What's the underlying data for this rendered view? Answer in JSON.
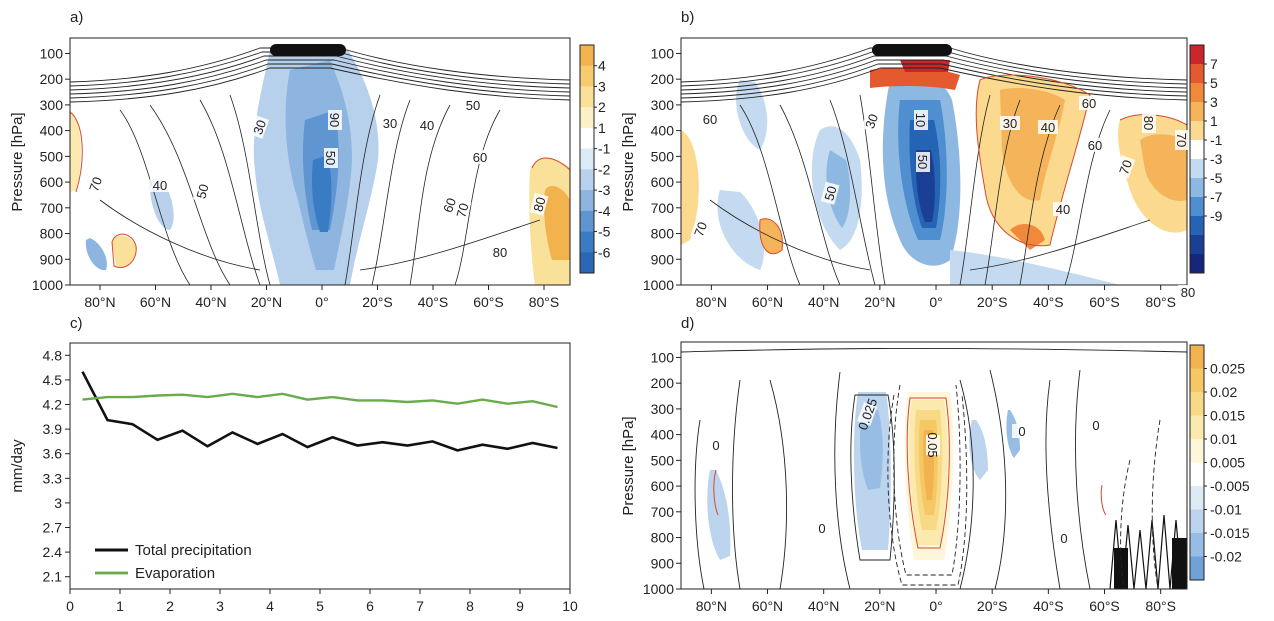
{
  "colors": {
    "frame": "#222222",
    "contour": "#222222",
    "red_contour": "#d8482f",
    "precip_line": "#111111",
    "evap_line": "#6aab4c"
  },
  "panels": [
    {
      "id": "a",
      "label": "a)",
      "ylabel": "Pressure [hPa]",
      "yticks": [
        "100",
        "200",
        "300",
        "400",
        "500",
        "600",
        "700",
        "800",
        "900",
        "1000"
      ],
      "xticks": [
        "80°N",
        "60°N",
        "40°N",
        "20°N",
        "0°",
        "20°S",
        "40°S",
        "60°S",
        "80°S"
      ],
      "colorbar": {
        "labels": [
          "4",
          "3",
          "2",
          "1",
          "-1",
          "-2",
          "-3",
          "-4",
          "-5",
          "-6"
        ],
        "colors": [
          "#f2b24e",
          "#f6cc6e",
          "#f9e19a",
          "#fcf1c6",
          "#ffffff",
          "#dce9f6",
          "#b7d1ec",
          "#8db5df",
          "#5f96d1",
          "#3a7cc4",
          "#2a68b5"
        ]
      },
      "contour_labels": [
        "30",
        "90",
        "50",
        "30",
        "40",
        "50",
        "60",
        "70",
        "50",
        "40",
        "60",
        "80",
        "70",
        "80"
      ]
    },
    {
      "id": "b",
      "label": "b)",
      "ylabel": "Pressure [hPa]",
      "yticks": [
        "100",
        "200",
        "300",
        "400",
        "500",
        "600",
        "700",
        "800",
        "900",
        "1000"
      ],
      "xticks": [
        "80°N",
        "60°N",
        "40°N",
        "20°N",
        "0°",
        "20°S",
        "40°S",
        "60°S",
        "80°S"
      ],
      "colorbar": {
        "labels": [
          "7",
          "5",
          "3",
          "1",
          "-1",
          "-3",
          "-5",
          "-7",
          "-9"
        ],
        "colors": [
          "#c8262a",
          "#e5592f",
          "#f08a3a",
          "#f6b45a",
          "#fbd98f",
          "#ffffff",
          "#c3daf0",
          "#8db8e2",
          "#4f8fd0",
          "#2563b4",
          "#1a3f94",
          "#15257a"
        ]
      },
      "contour_labels": [
        "60",
        "70",
        "30",
        "10",
        "50",
        "30",
        "40",
        "50",
        "60",
        "70",
        "80",
        "40",
        "60",
        "70",
        "80"
      ]
    },
    {
      "id": "c",
      "label": "c)",
      "ylabel": "mm/day"
    },
    {
      "id": "d",
      "label": "d)",
      "ylabel": "Pressure [hPa]",
      "yticks": [
        "100",
        "200",
        "300",
        "400",
        "500",
        "600",
        "700",
        "800",
        "900",
        "1000"
      ],
      "xticks": [
        "80°N",
        "60°N",
        "40°N",
        "20°N",
        "0°",
        "20°S",
        "40°S",
        "60°S",
        "80°S"
      ],
      "colorbar": {
        "labels": [
          "0.025",
          "0.02",
          "0.015",
          "0.01",
          "0.005",
          "-0.005",
          "-0.01",
          "-0.015",
          "-0.02"
        ],
        "colors": [
          "#f2b24e",
          "#f6c765",
          "#f8d985",
          "#fbe9ad",
          "#fdf6d8",
          "#ffffff",
          "#dfeaf7",
          "#bcd4ee",
          "#97bde4",
          "#6fa3d8"
        ]
      },
      "contour_labels": [
        "0",
        "0.025",
        "0.05",
        "0",
        "0",
        "0",
        "0"
      ]
    }
  ],
  "chart_data": [
    {
      "panel": "a",
      "type": "heatmap",
      "title": "",
      "xlabel": "",
      "ylabel": "Pressure [hPa]",
      "x_categories": [
        "80°N",
        "60°N",
        "40°N",
        "20°N",
        "0°",
        "20°S",
        "40°S",
        "60°S",
        "80°S"
      ],
      "y_range": [
        1000,
        0
      ],
      "colorbar_levels": [
        4,
        3,
        2,
        1,
        -1,
        -2,
        -3,
        -4,
        -5,
        -6
      ]
    },
    {
      "panel": "b",
      "type": "heatmap",
      "title": "",
      "xlabel": "",
      "ylabel": "Pressure [hPa]",
      "x_categories": [
        "80°N",
        "60°N",
        "40°N",
        "20°N",
        "0°",
        "20°S",
        "40°S",
        "60°S",
        "80°S"
      ],
      "y_range": [
        1000,
        0
      ],
      "colorbar_levels": [
        7,
        5,
        3,
        1,
        -1,
        -3,
        -5,
        -7,
        -9
      ]
    },
    {
      "panel": "c",
      "type": "line",
      "title": "",
      "xlabel": "",
      "ylabel": "mm/day",
      "xlim": [
        0,
        10
      ],
      "ylim": [
        1.95,
        4.95
      ],
      "xticks": [
        0,
        1,
        2,
        3,
        4,
        5,
        6,
        7,
        8,
        9,
        10
      ],
      "yticks": [
        2.1,
        2.4,
        2.7,
        3,
        3.3,
        3.6,
        3.9,
        4.2,
        4.5,
        4.8
      ],
      "ytick_labels": [
        "2.1",
        "2.4",
        "2.7",
        "3",
        "3.3",
        "3.6",
        "3.9",
        "4.2",
        "4.5",
        "4.8"
      ],
      "legend_position": "bottom-left",
      "x": [
        0.25,
        0.75,
        1.25,
        1.75,
        2.25,
        2.75,
        3.25,
        3.75,
        4.25,
        4.75,
        5.25,
        5.75,
        6.25,
        6.75,
        7.25,
        7.75,
        8.25,
        8.75,
        9.25,
        9.75
      ],
      "series": [
        {
          "name": "Total precipitation",
          "values": [
            4.6,
            4.01,
            3.96,
            3.77,
            3.88,
            3.69,
            3.86,
            3.72,
            3.84,
            3.68,
            3.8,
            3.7,
            3.74,
            3.7,
            3.75,
            3.64,
            3.71,
            3.66,
            3.73,
            3.67
          ]
        },
        {
          "name": "Evaporation",
          "values": [
            4.26,
            4.29,
            4.29,
            4.31,
            4.32,
            4.29,
            4.33,
            4.29,
            4.33,
            4.26,
            4.29,
            4.25,
            4.25,
            4.23,
            4.25,
            4.21,
            4.26,
            4.21,
            4.24,
            4.17
          ]
        }
      ]
    },
    {
      "panel": "d",
      "type": "heatmap",
      "title": "",
      "xlabel": "",
      "ylabel": "Pressure [hPa]",
      "x_categories": [
        "80°N",
        "60°N",
        "40°N",
        "20°N",
        "0°",
        "20°S",
        "40°S",
        "60°S",
        "80°S"
      ],
      "y_range": [
        1000,
        0
      ],
      "colorbar_levels": [
        0.025,
        0.02,
        0.015,
        0.01,
        0.005,
        -0.005,
        -0.01,
        -0.015,
        -0.02
      ]
    }
  ]
}
